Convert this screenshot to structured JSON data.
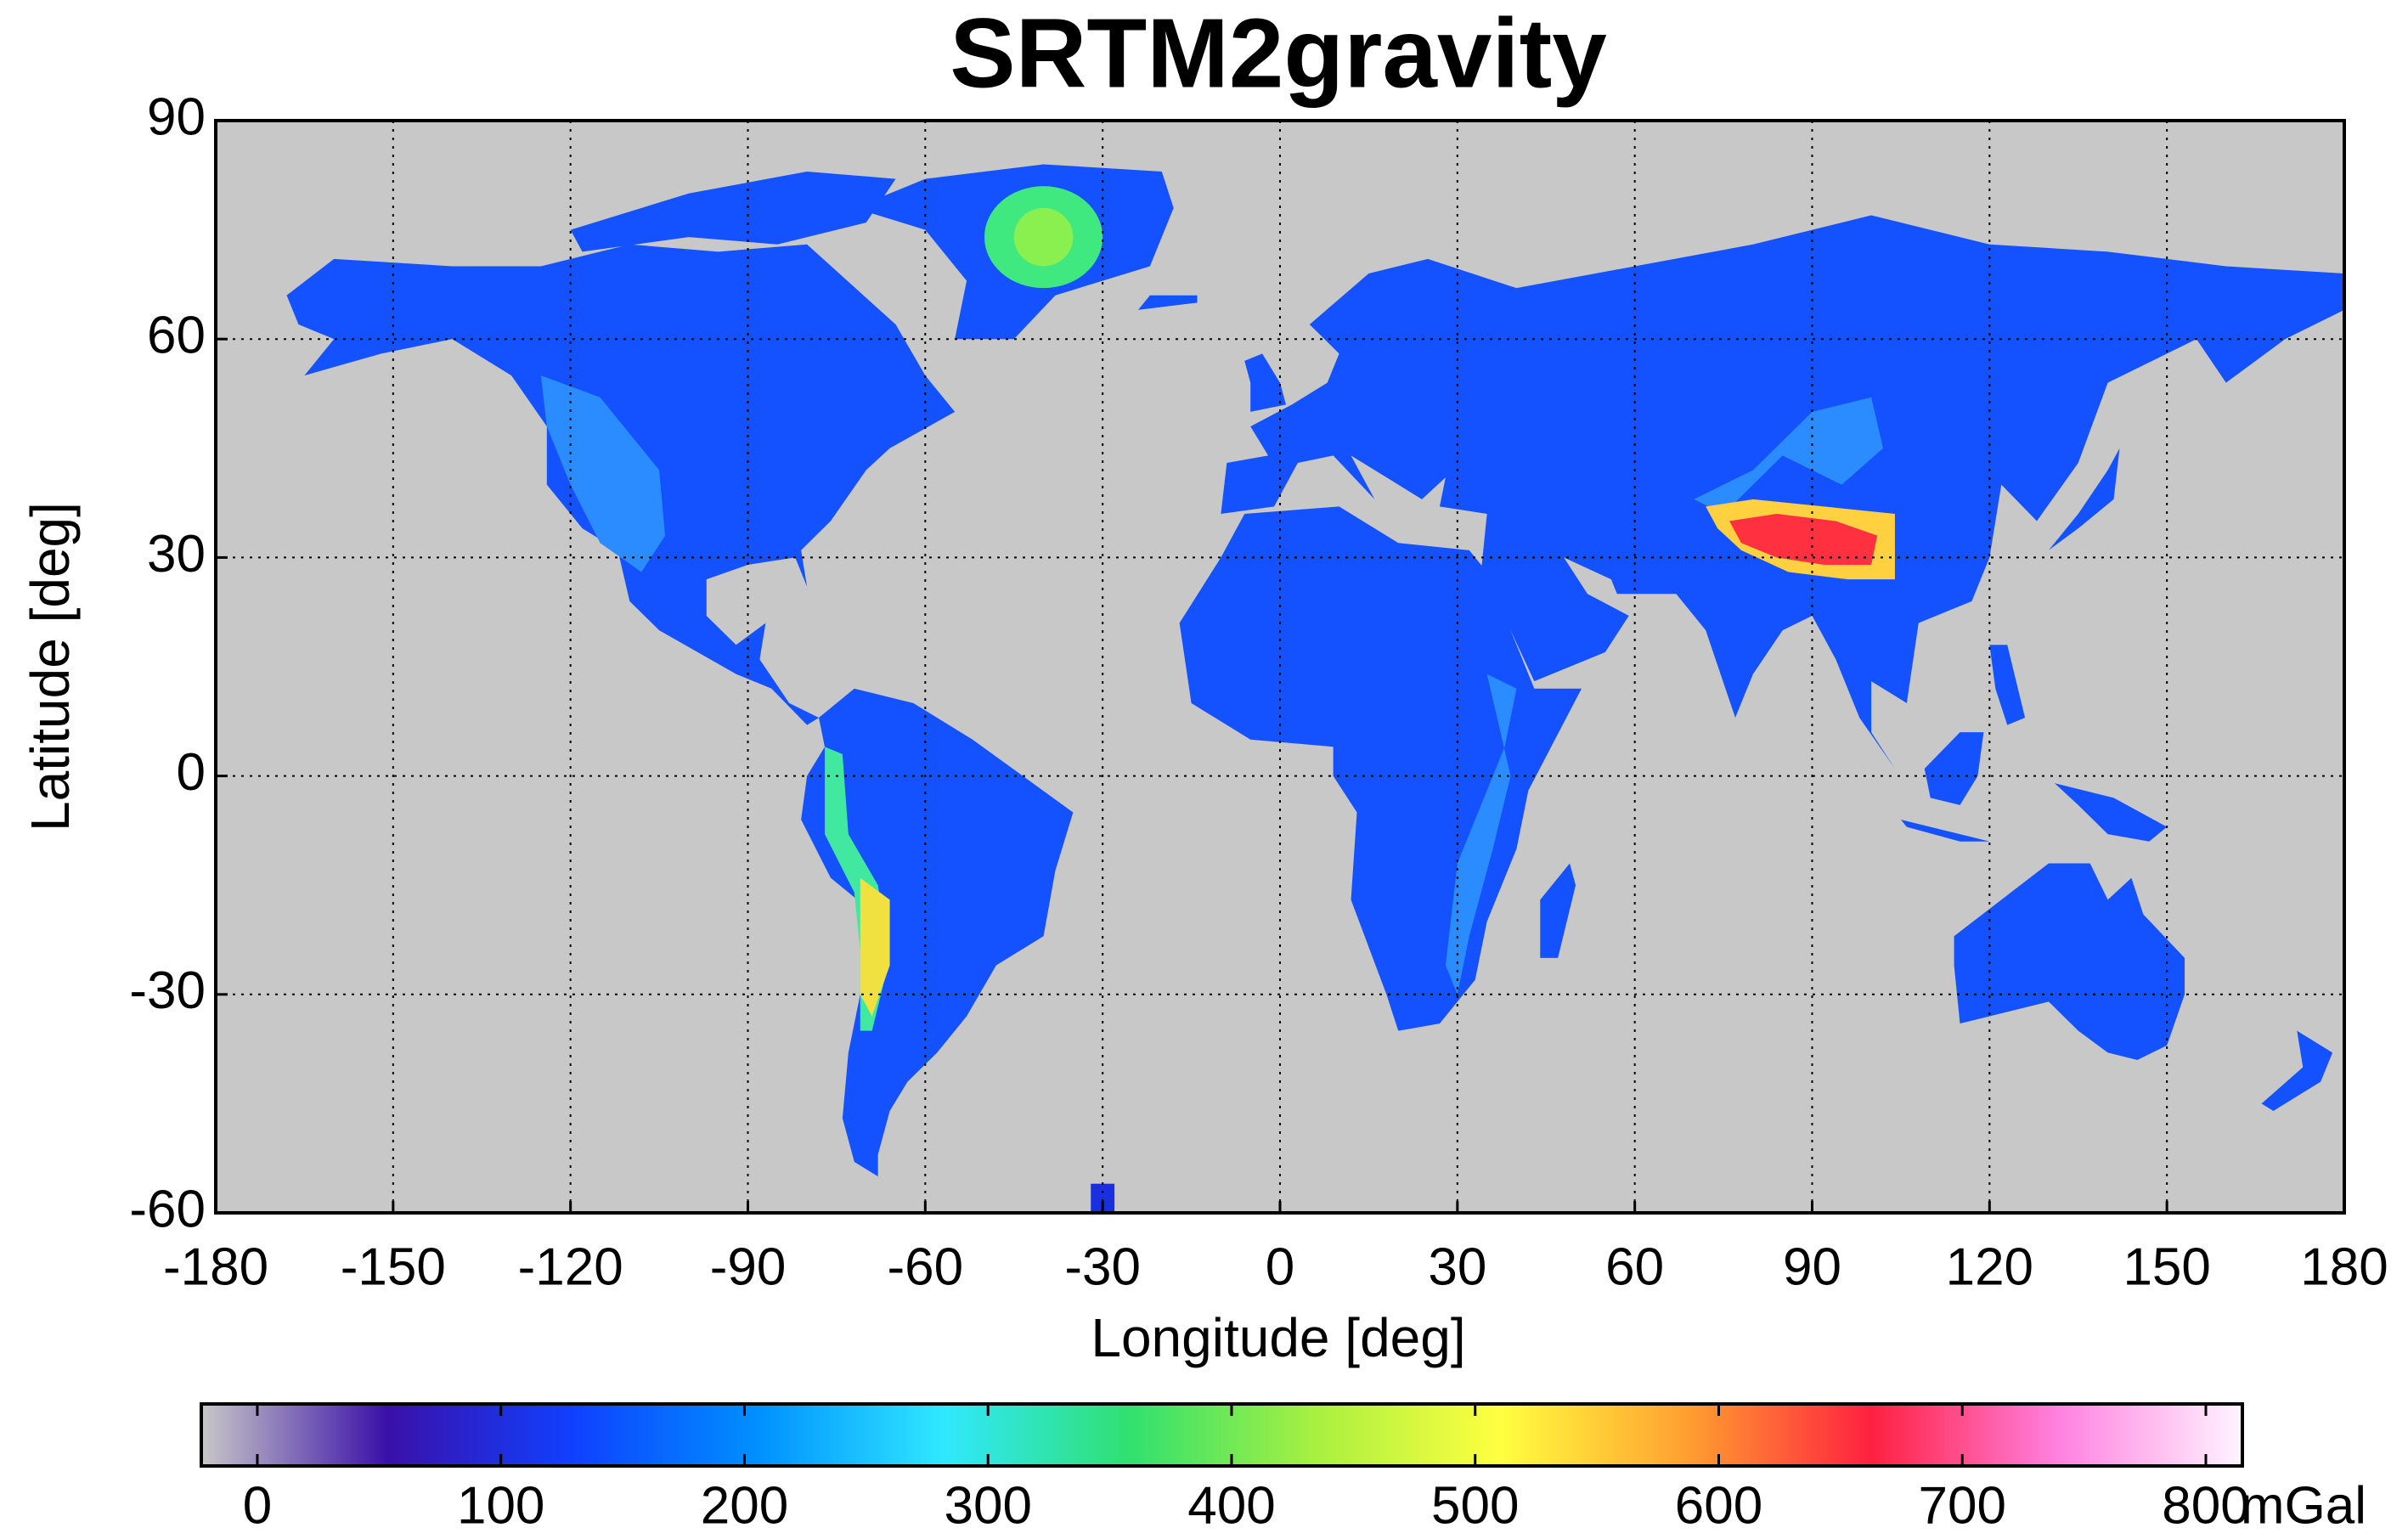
{
  "chart_data": {
    "type": "map",
    "title": "SRTM2gravity",
    "xlabel": "Longitude [deg]",
    "ylabel": "Latitude [deg]",
    "xlim": [
      -180,
      180
    ],
    "ylim": [
      -60,
      90
    ],
    "xticks": [
      -180,
      -150,
      -120,
      -90,
      -60,
      -30,
      0,
      30,
      60,
      90,
      120,
      150,
      180
    ],
    "yticks": [
      -60,
      -30,
      0,
      30,
      60,
      90
    ],
    "grid": true,
    "background_color": "#c8c8c8",
    "colorbar": {
      "label": "mGal",
      "clim": [
        -23,
        815
      ],
      "ticks": [
        0,
        100,
        200,
        300,
        400,
        500,
        600,
        700,
        800
      ],
      "colormap": [
        "#c8c8c8",
        "#3a10a8",
        "#1040ff",
        "#0090ff",
        "#30e8ff",
        "#30e070",
        "#a8f040",
        "#ffff40",
        "#ffa030",
        "#ff2040",
        "#ff80e0",
        "#fff4ff"
      ]
    }
  }
}
